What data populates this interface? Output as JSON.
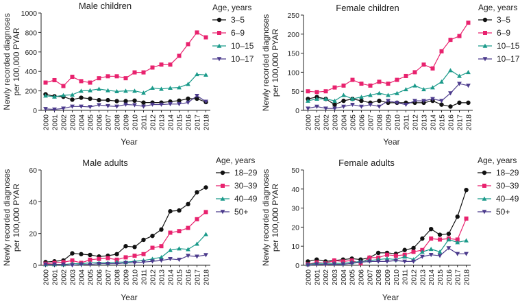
{
  "colors": {
    "s1": "#111111",
    "s2": "#e8226e",
    "s3": "#1a9a8a",
    "s4": "#4b3a8c"
  },
  "chart_data": [
    {
      "type": "line",
      "title": "Male children",
      "xlabel": "Year",
      "ylabel": "Newly recorded diagnoses per 100,000 PYAR",
      "ylim": [
        0,
        1000
      ],
      "yticks": [
        0,
        200,
        400,
        600,
        800,
        1000
      ],
      "legend_title": "Age, years",
      "legend_position": "top-right",
      "x": [
        "2000",
        "2001",
        "2002",
        "2003",
        "2004",
        "2005",
        "2006",
        "2007",
        "2008",
        "2009",
        "2010",
        "2011",
        "2012",
        "2013",
        "2014",
        "2015",
        "2016",
        "2017",
        "2018"
      ],
      "series": [
        {
          "name": "3–5",
          "marker": "circle",
          "color": "#111111",
          "values": [
            165,
            145,
            140,
            110,
            130,
            120,
            105,
            105,
            95,
            95,
            100,
            80,
            80,
            80,
            90,
            100,
            120,
            120,
            85
          ]
        },
        {
          "name": "6–9",
          "marker": "square",
          "color": "#e8226e",
          "values": [
            285,
            310,
            250,
            345,
            300,
            285,
            330,
            350,
            350,
            330,
            390,
            390,
            440,
            470,
            470,
            560,
            680,
            800,
            750
          ]
        },
        {
          "name": "10–15",
          "marker": "triangle",
          "color": "#1a9a8a",
          "values": [
            150,
            140,
            155,
            160,
            200,
            205,
            220,
            205,
            195,
            200,
            200,
            180,
            230,
            220,
            230,
            235,
            270,
            370,
            365
          ]
        },
        {
          "name": "10–17",
          "marker": "triangle-down",
          "color": "#4b3a8c",
          "values": [
            15,
            10,
            20,
            40,
            40,
            35,
            55,
            45,
            40,
            60,
            55,
            40,
            60,
            60,
            65,
            65,
            80,
            150,
            90
          ]
        }
      ]
    },
    {
      "type": "line",
      "title": "Female children",
      "xlabel": "Year",
      "ylabel": "Newly recorded diagnoses per 100,000 PYAR",
      "ylim": [
        0,
        250
      ],
      "yticks": [
        0,
        50,
        100,
        150,
        200,
        250
      ],
      "legend_title": "Age, years",
      "legend_position": "top-right",
      "x": [
        "2000",
        "2001",
        "2002",
        "2003",
        "2004",
        "2005",
        "2006",
        "2007",
        "2008",
        "2009",
        "2010",
        "2011",
        "2012",
        "2013",
        "2014",
        "2015",
        "2016",
        "2017",
        "2018"
      ],
      "series": [
        {
          "name": "3–5",
          "marker": "circle",
          "color": "#111111",
          "values": [
            30,
            35,
            30,
            15,
            25,
            30,
            25,
            20,
            25,
            20,
            20,
            20,
            20,
            20,
            25,
            15,
            10,
            20,
            20
          ]
        },
        {
          "name": "6–9",
          "marker": "square",
          "color": "#e8226e",
          "values": [
            50,
            48,
            50,
            60,
            65,
            80,
            70,
            65,
            75,
            70,
            80,
            90,
            100,
            120,
            110,
            155,
            185,
            195,
            230
          ]
        },
        {
          "name": "10–15",
          "marker": "triangle",
          "color": "#1a9a8a",
          "values": [
            25,
            30,
            30,
            25,
            40,
            30,
            35,
            40,
            45,
            40,
            45,
            55,
            65,
            55,
            60,
            75,
            105,
            90,
            100
          ]
        },
        {
          "name": "10–17",
          "marker": "triangle-down",
          "color": "#4b3a8c",
          "values": [
            5,
            10,
            5,
            5,
            10,
            15,
            10,
            15,
            10,
            25,
            20,
            15,
            25,
            25,
            30,
            25,
            45,
            70,
            65
          ]
        }
      ]
    },
    {
      "type": "line",
      "title": "Male adults",
      "xlabel": "Year",
      "ylabel": "Newly recorded diagnoses per 100,000 PYAR",
      "ylim": [
        0,
        60
      ],
      "yticks": [
        0,
        20,
        40,
        60
      ],
      "legend_title": "Age, years",
      "legend_position": "top-right",
      "x": [
        "2000",
        "2001",
        "2002",
        "2003",
        "2004",
        "2005",
        "2006",
        "2007",
        "2008",
        "2009",
        "2010",
        "2011",
        "2012",
        "2013",
        "2014",
        "2015",
        "2016",
        "2017",
        "2018"
      ],
      "series": [
        {
          "name": "18–29",
          "marker": "circle",
          "color": "#111111",
          "values": [
            2,
            2.5,
            3,
            7.5,
            7,
            6.5,
            5.5,
            6,
            7,
            12,
            11.5,
            16,
            18.5,
            22.5,
            34,
            34.5,
            38.5,
            46,
            49
          ]
        },
        {
          "name": "30–39",
          "marker": "square",
          "color": "#e8226e",
          "values": [
            1,
            1.5,
            2,
            3,
            1.5,
            3.5,
            4,
            4.5,
            3.5,
            5,
            6,
            7,
            11,
            12,
            20.5,
            21.5,
            23.5,
            29,
            33.5
          ]
        },
        {
          "name": "40–49",
          "marker": "triangle",
          "color": "#1a9a8a",
          "values": [
            0.5,
            0.5,
            0.5,
            1,
            1,
            1.5,
            1.5,
            1.5,
            2,
            2,
            2.5,
            3,
            4,
            5,
            9.5,
            10.5,
            10,
            13.5,
            19.5
          ]
        },
        {
          "name": "50+",
          "marker": "triangle-down",
          "color": "#4b3a8c",
          "values": [
            0.5,
            0.5,
            0.5,
            0,
            0.5,
            0.5,
            1,
            1,
            1,
            1.5,
            1.5,
            2,
            2.5,
            3,
            4,
            3.5,
            6,
            5.5,
            6.5
          ]
        }
      ]
    },
    {
      "type": "line",
      "title": "Female adults",
      "xlabel": "Year",
      "ylabel": "Newly recorded diagnoses per 100,000 PYAR",
      "ylim": [
        0,
        50
      ],
      "yticks": [
        0,
        10,
        20,
        30,
        40,
        50
      ],
      "legend_title": "Age, years",
      "legend_position": "top-right",
      "x": [
        "2000",
        "2001",
        "2002",
        "2003",
        "2004",
        "2005",
        "2006",
        "2007",
        "2008",
        "2009",
        "2010",
        "2011",
        "2012",
        "2013",
        "2014",
        "2015",
        "2016",
        "2017",
        "2018"
      ],
      "series": [
        {
          "name": "18–29",
          "marker": "circle",
          "color": "#111111",
          "values": [
            2,
            3,
            2,
            2.5,
            3,
            3.5,
            3,
            4,
            6.5,
            6.5,
            6,
            8,
            9,
            14,
            19,
            16,
            16.5,
            25.5,
            39.5
          ]
        },
        {
          "name": "30–39",
          "marker": "square",
          "color": "#e8226e",
          "values": [
            0.5,
            1.5,
            1,
            2.5,
            2,
            2.5,
            1,
            4,
            4,
            5.5,
            5,
            5.5,
            7,
            8,
            14,
            13.5,
            14,
            13.5,
            24.5
          ]
        },
        {
          "name": "40–49",
          "marker": "triangle",
          "color": "#1a9a8a",
          "values": [
            0.5,
            1,
            1,
            1,
            1,
            1.5,
            2,
            2.5,
            3,
            3.5,
            3,
            4.5,
            3,
            7,
            8.5,
            7,
            13.5,
            12,
            13
          ]
        },
        {
          "name": "50+",
          "marker": "triangle-down",
          "color": "#4b3a8c",
          "values": [
            0,
            0.5,
            0.5,
            0.5,
            0.5,
            1,
            1.5,
            2,
            2,
            2,
            2.5,
            2,
            2,
            4.5,
            5.5,
            5,
            9,
            6,
            6
          ]
        }
      ]
    }
  ]
}
